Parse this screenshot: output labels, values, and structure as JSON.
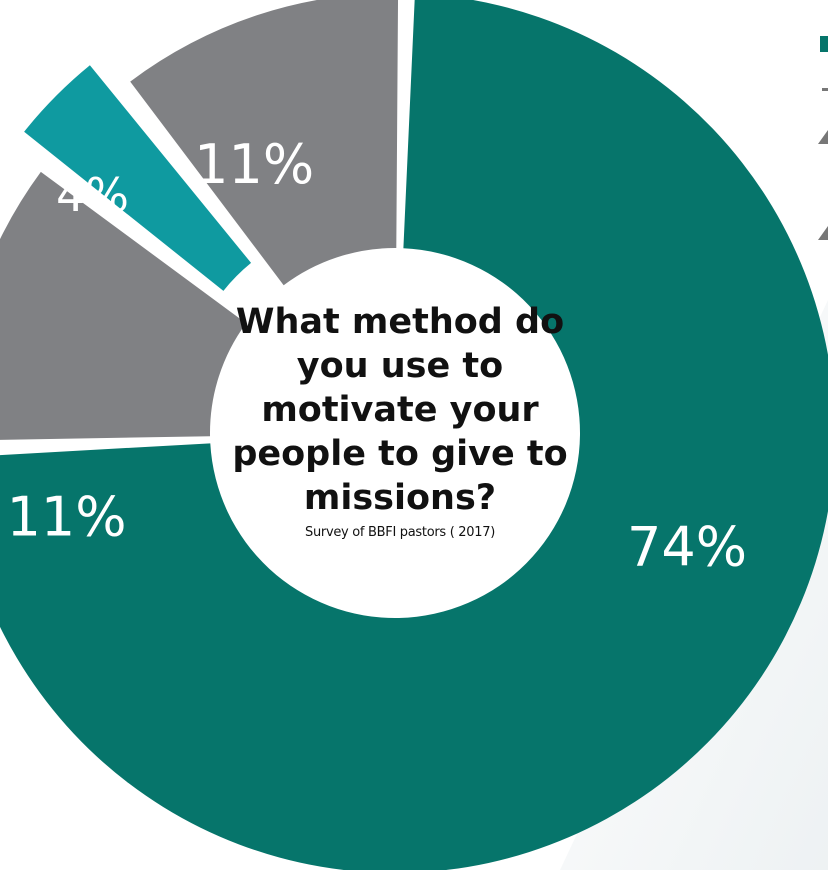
{
  "chart_data": {
    "type": "pie",
    "variant": "donut",
    "title": "What method do you use to motivate your people to give to missions?",
    "subtitle": "Survey of BBFI pastors ( 2017)",
    "slices": [
      {
        "value": 74,
        "label": "74%",
        "color": "#06756b"
      },
      {
        "value": 11,
        "label": "11%",
        "color": "#808184"
      },
      {
        "value": 4,
        "label": "4%",
        "color": "#0f9aa0",
        "exploded": true
      },
      {
        "value": 11,
        "label": "11%",
        "color": "#808184"
      }
    ]
  }
}
